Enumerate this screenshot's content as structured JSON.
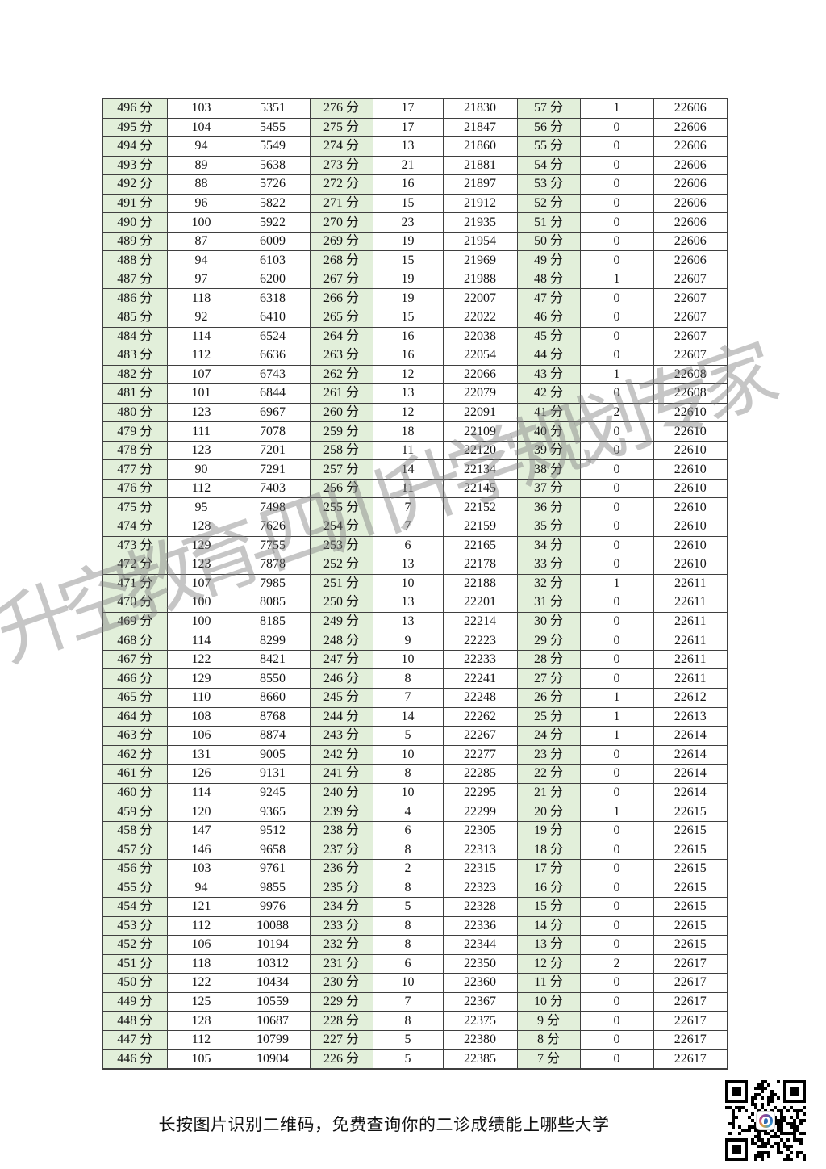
{
  "page": {
    "background": "#ffffff"
  },
  "score_table": {
    "green_fill": "#e2efda",
    "border_color": "#3f3f3f",
    "rows": [
      [
        "496 分",
        "103",
        "5351",
        "276 分",
        "17",
        "21830",
        "57 分",
        "1",
        "22606"
      ],
      [
        "495 分",
        "104",
        "5455",
        "275 分",
        "17",
        "21847",
        "56 分",
        "0",
        "22606"
      ],
      [
        "494 分",
        "94",
        "5549",
        "274 分",
        "13",
        "21860",
        "55 分",
        "0",
        "22606"
      ],
      [
        "493 分",
        "89",
        "5638",
        "273 分",
        "21",
        "21881",
        "54 分",
        "0",
        "22606"
      ],
      [
        "492 分",
        "88",
        "5726",
        "272 分",
        "16",
        "21897",
        "53 分",
        "0",
        "22606"
      ],
      [
        "491 分",
        "96",
        "5822",
        "271 分",
        "15",
        "21912",
        "52 分",
        "0",
        "22606"
      ],
      [
        "490 分",
        "100",
        "5922",
        "270 分",
        "23",
        "21935",
        "51 分",
        "0",
        "22606"
      ],
      [
        "489 分",
        "87",
        "6009",
        "269 分",
        "19",
        "21954",
        "50 分",
        "0",
        "22606"
      ],
      [
        "488 分",
        "94",
        "6103",
        "268 分",
        "15",
        "21969",
        "49 分",
        "0",
        "22606"
      ],
      [
        "487 分",
        "97",
        "6200",
        "267 分",
        "19",
        "21988",
        "48 分",
        "1",
        "22607"
      ],
      [
        "486 分",
        "118",
        "6318",
        "266 分",
        "19",
        "22007",
        "47 分",
        "0",
        "22607"
      ],
      [
        "485 分",
        "92",
        "6410",
        "265 分",
        "15",
        "22022",
        "46 分",
        "0",
        "22607"
      ],
      [
        "484 分",
        "114",
        "6524",
        "264 分",
        "16",
        "22038",
        "45 分",
        "0",
        "22607"
      ],
      [
        "483 分",
        "112",
        "6636",
        "263 分",
        "16",
        "22054",
        "44 分",
        "0",
        "22607"
      ],
      [
        "482 分",
        "107",
        "6743",
        "262 分",
        "12",
        "22066",
        "43 分",
        "1",
        "22608"
      ],
      [
        "481 分",
        "101",
        "6844",
        "261 分",
        "13",
        "22079",
        "42 分",
        "0",
        "22608"
      ],
      [
        "480 分",
        "123",
        "6967",
        "260 分",
        "12",
        "22091",
        "41 分",
        "2",
        "22610"
      ],
      [
        "479 分",
        "111",
        "7078",
        "259 分",
        "18",
        "22109",
        "40 分",
        "0",
        "22610"
      ],
      [
        "478 分",
        "123",
        "7201",
        "258 分",
        "11",
        "22120",
        "39 分",
        "0",
        "22610"
      ],
      [
        "477 分",
        "90",
        "7291",
        "257 分",
        "14",
        "22134",
        "38 分",
        "0",
        "22610"
      ],
      [
        "476 分",
        "112",
        "7403",
        "256 分",
        "11",
        "22145",
        "37 分",
        "0",
        "22610"
      ],
      [
        "475 分",
        "95",
        "7498",
        "255 分",
        "7",
        "22152",
        "36 分",
        "0",
        "22610"
      ],
      [
        "474 分",
        "128",
        "7626",
        "254 分",
        "7",
        "22159",
        "35 分",
        "0",
        "22610"
      ],
      [
        "473 分",
        "129",
        "7755",
        "253 分",
        "6",
        "22165",
        "34 分",
        "0",
        "22610"
      ],
      [
        "472 分",
        "123",
        "7878",
        "252 分",
        "13",
        "22178",
        "33 分",
        "0",
        "22610"
      ],
      [
        "471 分",
        "107",
        "7985",
        "251 分",
        "10",
        "22188",
        "32 分",
        "1",
        "22611"
      ],
      [
        "470 分",
        "100",
        "8085",
        "250 分",
        "13",
        "22201",
        "31 分",
        "0",
        "22611"
      ],
      [
        "469 分",
        "100",
        "8185",
        "249 分",
        "13",
        "22214",
        "30 分",
        "0",
        "22611"
      ],
      [
        "468 分",
        "114",
        "8299",
        "248 分",
        "9",
        "22223",
        "29 分",
        "0",
        "22611"
      ],
      [
        "467 分",
        "122",
        "8421",
        "247 分",
        "10",
        "22233",
        "28 分",
        "0",
        "22611"
      ],
      [
        "466 分",
        "129",
        "8550",
        "246 分",
        "8",
        "22241",
        "27 分",
        "0",
        "22611"
      ],
      [
        "465 分",
        "110",
        "8660",
        "245 分",
        "7",
        "22248",
        "26 分",
        "1",
        "22612"
      ],
      [
        "464 分",
        "108",
        "8768",
        "244 分",
        "14",
        "22262",
        "25 分",
        "1",
        "22613"
      ],
      [
        "463 分",
        "106",
        "8874",
        "243 分",
        "5",
        "22267",
        "24 分",
        "1",
        "22614"
      ],
      [
        "462 分",
        "131",
        "9005",
        "242 分",
        "10",
        "22277",
        "23 分",
        "0",
        "22614"
      ],
      [
        "461 分",
        "126",
        "9131",
        "241 分",
        "8",
        "22285",
        "22 分",
        "0",
        "22614"
      ],
      [
        "460 分",
        "114",
        "9245",
        "240 分",
        "10",
        "22295",
        "21 分",
        "0",
        "22614"
      ],
      [
        "459 分",
        "120",
        "9365",
        "239 分",
        "4",
        "22299",
        "20 分",
        "1",
        "22615"
      ],
      [
        "458 分",
        "147",
        "9512",
        "238 分",
        "6",
        "22305",
        "19 分",
        "0",
        "22615"
      ],
      [
        "457 分",
        "146",
        "9658",
        "237 分",
        "8",
        "22313",
        "18 分",
        "0",
        "22615"
      ],
      [
        "456 分",
        "103",
        "9761",
        "236 分",
        "2",
        "22315",
        "17 分",
        "0",
        "22615"
      ],
      [
        "455 分",
        "94",
        "9855",
        "235 分",
        "8",
        "22323",
        "16 分",
        "0",
        "22615"
      ],
      [
        "454 分",
        "121",
        "9976",
        "234 分",
        "5",
        "22328",
        "15 分",
        "0",
        "22615"
      ],
      [
        "453 分",
        "112",
        "10088",
        "233 分",
        "8",
        "22336",
        "14 分",
        "0",
        "22615"
      ],
      [
        "452 分",
        "106",
        "10194",
        "232 分",
        "8",
        "22344",
        "13 分",
        "0",
        "22615"
      ],
      [
        "451 分",
        "118",
        "10312",
        "231 分",
        "6",
        "22350",
        "12 分",
        "2",
        "22617"
      ],
      [
        "450 分",
        "122",
        "10434",
        "230 分",
        "10",
        "22360",
        "11 分",
        "0",
        "22617"
      ],
      [
        "449 分",
        "125",
        "10559",
        "229 分",
        "7",
        "22367",
        "10 分",
        "0",
        "22617"
      ],
      [
        "448 分",
        "128",
        "10687",
        "228 分",
        "8",
        "22375",
        "9 分",
        "0",
        "22617"
      ],
      [
        "447 分",
        "112",
        "10799",
        "227 分",
        "5",
        "22380",
        "8 分",
        "0",
        "22617"
      ],
      [
        "446 分",
        "105",
        "10904",
        "226 分",
        "5",
        "22385",
        "7 分",
        "0",
        "22617"
      ]
    ]
  },
  "watermark": {
    "text": "升空教育-四川升学规划专家",
    "color": "#9a9a9a"
  },
  "footer": {
    "caption": "长按图片识别二维码，免费查询你的二诊成绩能上哪些大学"
  }
}
